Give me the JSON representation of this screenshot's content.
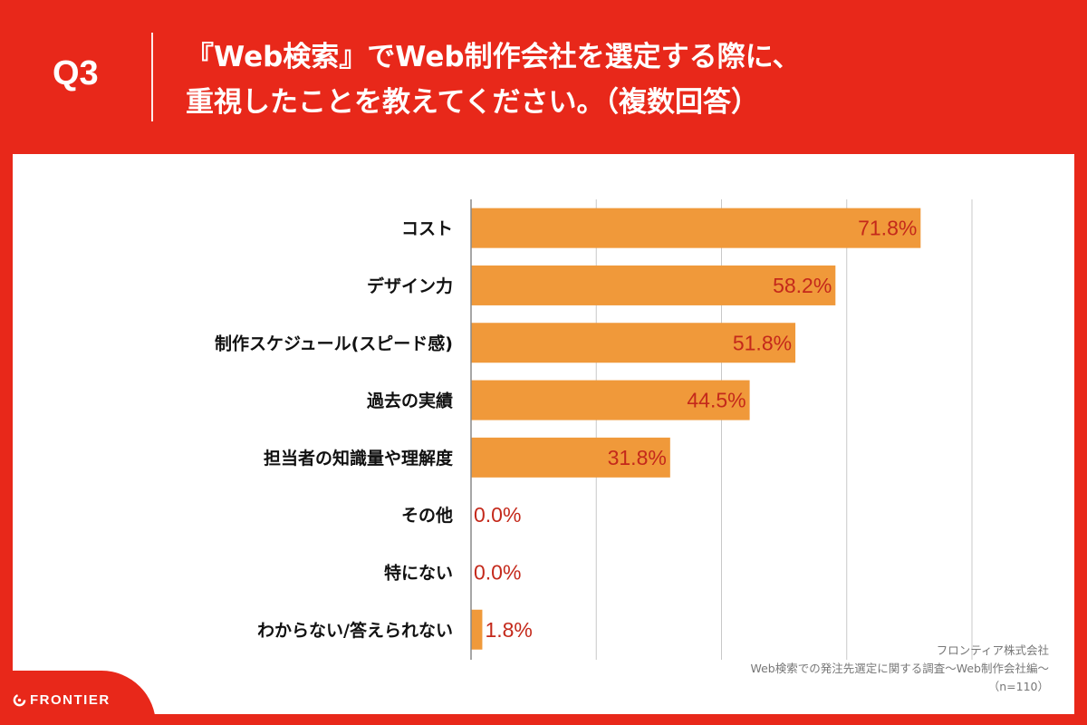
{
  "header": {
    "question": "Q3",
    "title_line1": "『Web検索』でWeb制作会社を選定する際に、",
    "title_line2": "重視したことを教えてください。（複数回答）"
  },
  "chart_data": {
    "type": "bar",
    "orientation": "horizontal",
    "categories": [
      "コスト",
      "デザイン力",
      "制作スケジュール(スピード感)",
      "過去の実績",
      "担当者の知識量や理解度",
      "その他",
      "特にない",
      "わからない/答えられない"
    ],
    "values": [
      71.8,
      58.2,
      51.8,
      44.5,
      31.8,
      0.0,
      0.0,
      1.8
    ],
    "value_labels": [
      "71.8%",
      "58.2%",
      "51.8%",
      "44.5%",
      "31.8%",
      "0.0%",
      "0.0%",
      "1.8%"
    ],
    "xlim": [
      0,
      80
    ],
    "grid": true,
    "bar_color": "#f0993a",
    "label_color": "#c4291b"
  },
  "source": {
    "company": "フロンティア株式会社",
    "survey": "Web検索での発注先選定に関する調査〜Web制作会社編〜",
    "sample": "（n=110）"
  },
  "logo": {
    "text": "FRONTIER"
  },
  "colors": {
    "brand_red": "#e8281a",
    "bar": "#f0993a",
    "value_text": "#c4291b"
  }
}
